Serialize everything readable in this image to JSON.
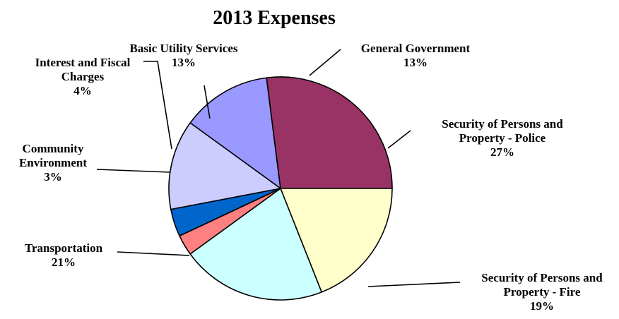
{
  "chart_data": {
    "type": "pie",
    "title": "2013 Expenses",
    "slices": [
      {
        "lines": [
          "General Government"
        ],
        "pct_label": "13%",
        "value": 13,
        "color": "#9999ff"
      },
      {
        "lines": [
          "Security of Persons and",
          "Property - Police"
        ],
        "pct_label": "27%",
        "value": 27,
        "color": "#993366"
      },
      {
        "lines": [
          "Security of Persons and",
          "Property - Fire"
        ],
        "pct_label": "19%",
        "value": 19,
        "color": "#ffffcc"
      },
      {
        "lines": [
          "Transportation"
        ],
        "pct_label": "21%",
        "value": 21,
        "color": "#ccffff"
      },
      {
        "lines": [
          "Community",
          "Environment"
        ],
        "pct_label": "3%",
        "value": 3,
        "color": "#ff8080"
      },
      {
        "lines": [
          "Interest and Fiscal",
          "Charges"
        ],
        "pct_label": "4%",
        "value": 4,
        "color": "#0066cc"
      },
      {
        "lines": [
          "Basic Utility Services"
        ],
        "pct_label": "13%",
        "value": 13,
        "color": "#ccccff"
      }
    ]
  }
}
